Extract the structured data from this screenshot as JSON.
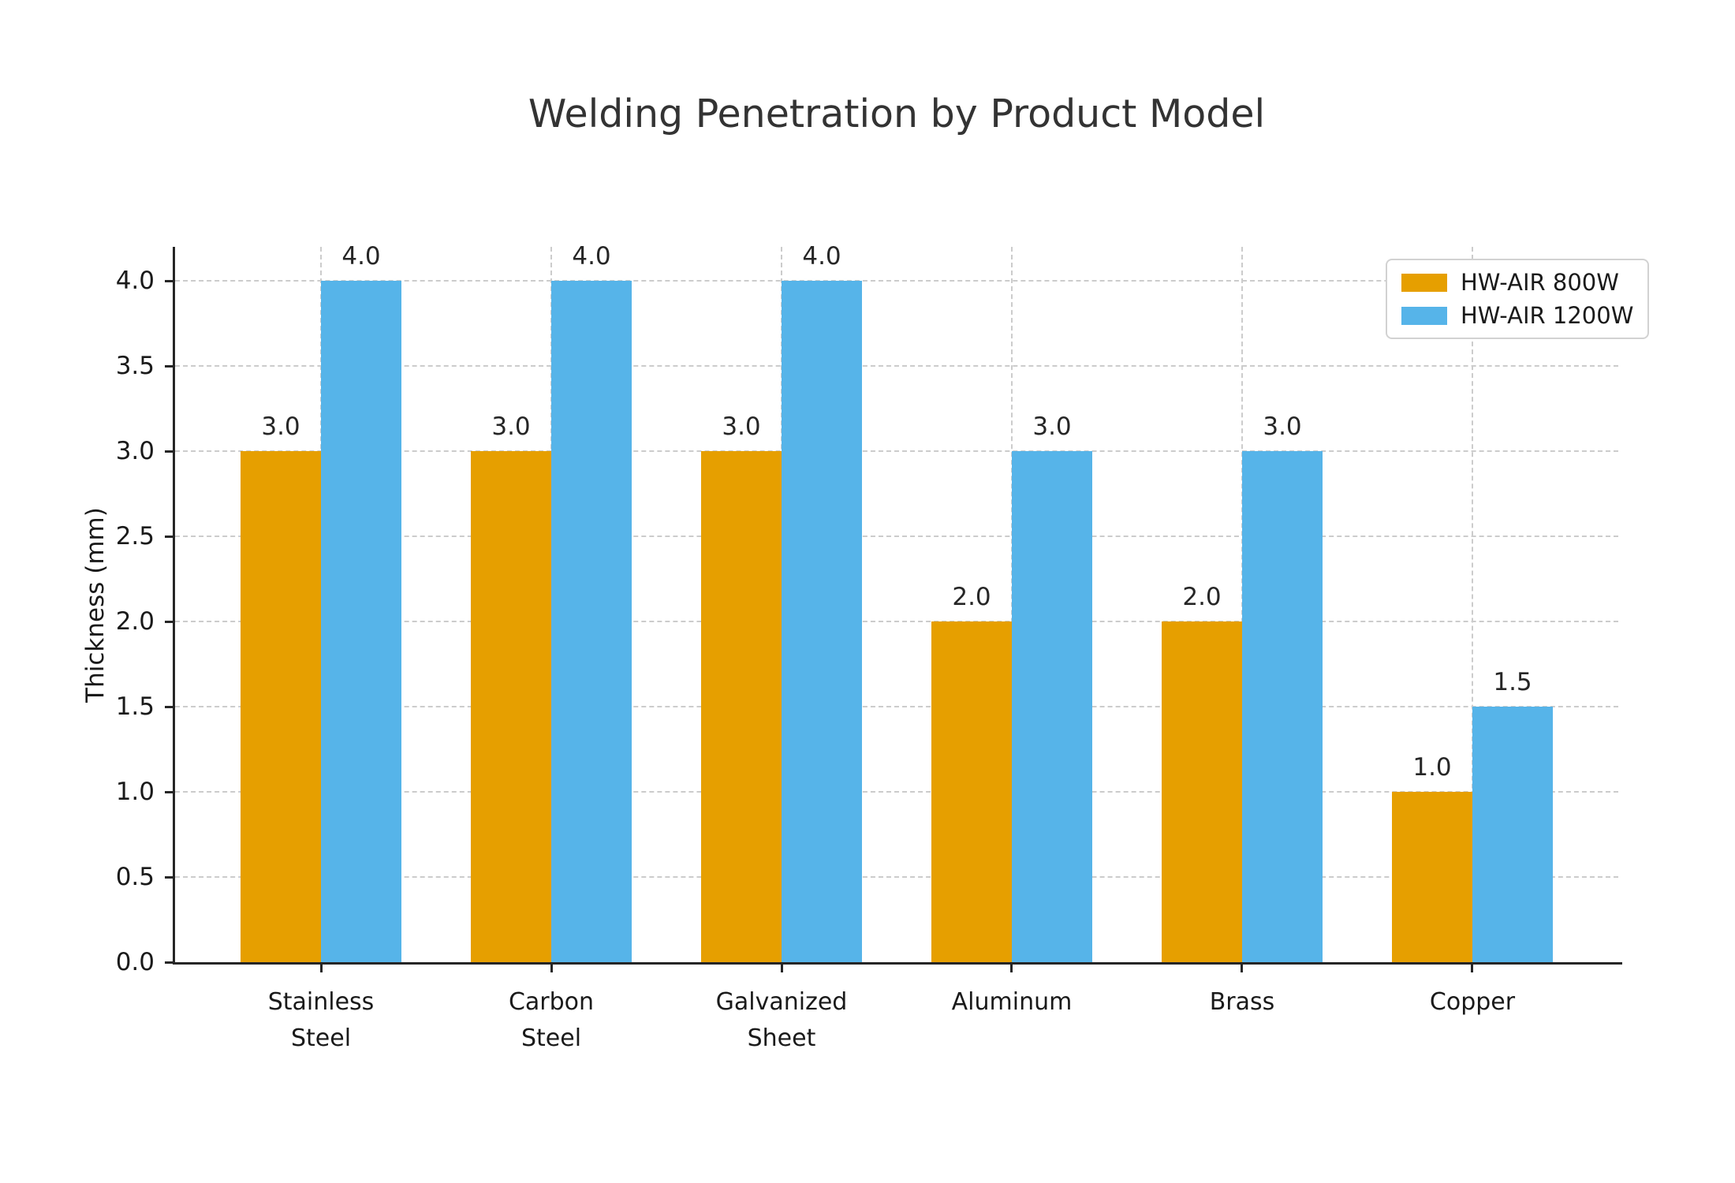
{
  "chart_data": {
    "type": "bar",
    "title": "Welding Penetration by Product Model",
    "xlabel": "",
    "ylabel": "Thickness (mm)",
    "categories": [
      "Stainless Steel",
      "Carbon Steel",
      "Galvanized Sheet",
      "Aluminum",
      "Brass",
      "Copper"
    ],
    "xtick_labels": [
      "Stainless\nSteel",
      "Carbon\nSteel",
      "Galvanized\nSheet",
      "Aluminum",
      "Brass",
      "Copper"
    ],
    "series": [
      {
        "name": "HW-AIR 800W",
        "color": "#E69F00",
        "values": [
          3.0,
          3.0,
          3.0,
          2.0,
          2.0,
          1.0
        ],
        "labels": [
          "3.0",
          "3.0",
          "3.0",
          "2.0",
          "2.0",
          "1.0"
        ]
      },
      {
        "name": "HW-AIR 1200W",
        "color": "#56B4E9",
        "values": [
          4.0,
          4.0,
          4.0,
          3.0,
          3.0,
          1.5
        ],
        "labels": [
          "4.0",
          "4.0",
          "4.0",
          "3.0",
          "3.0",
          "1.5"
        ]
      }
    ],
    "yticks": [
      0.0,
      0.5,
      1.0,
      1.5,
      2.0,
      2.5,
      3.0,
      3.5,
      4.0
    ],
    "ytick_labels": [
      "0.0",
      "0.5",
      "1.0",
      "1.5",
      "2.0",
      "2.5",
      "3.0",
      "3.5",
      "4.0"
    ],
    "ylim": [
      0,
      4.2
    ],
    "bar_width": 0.35,
    "grid": "both-dashed",
    "legend_position": "upper-right",
    "grid_color": "#cccccc",
    "axis_color": "#262626"
  }
}
